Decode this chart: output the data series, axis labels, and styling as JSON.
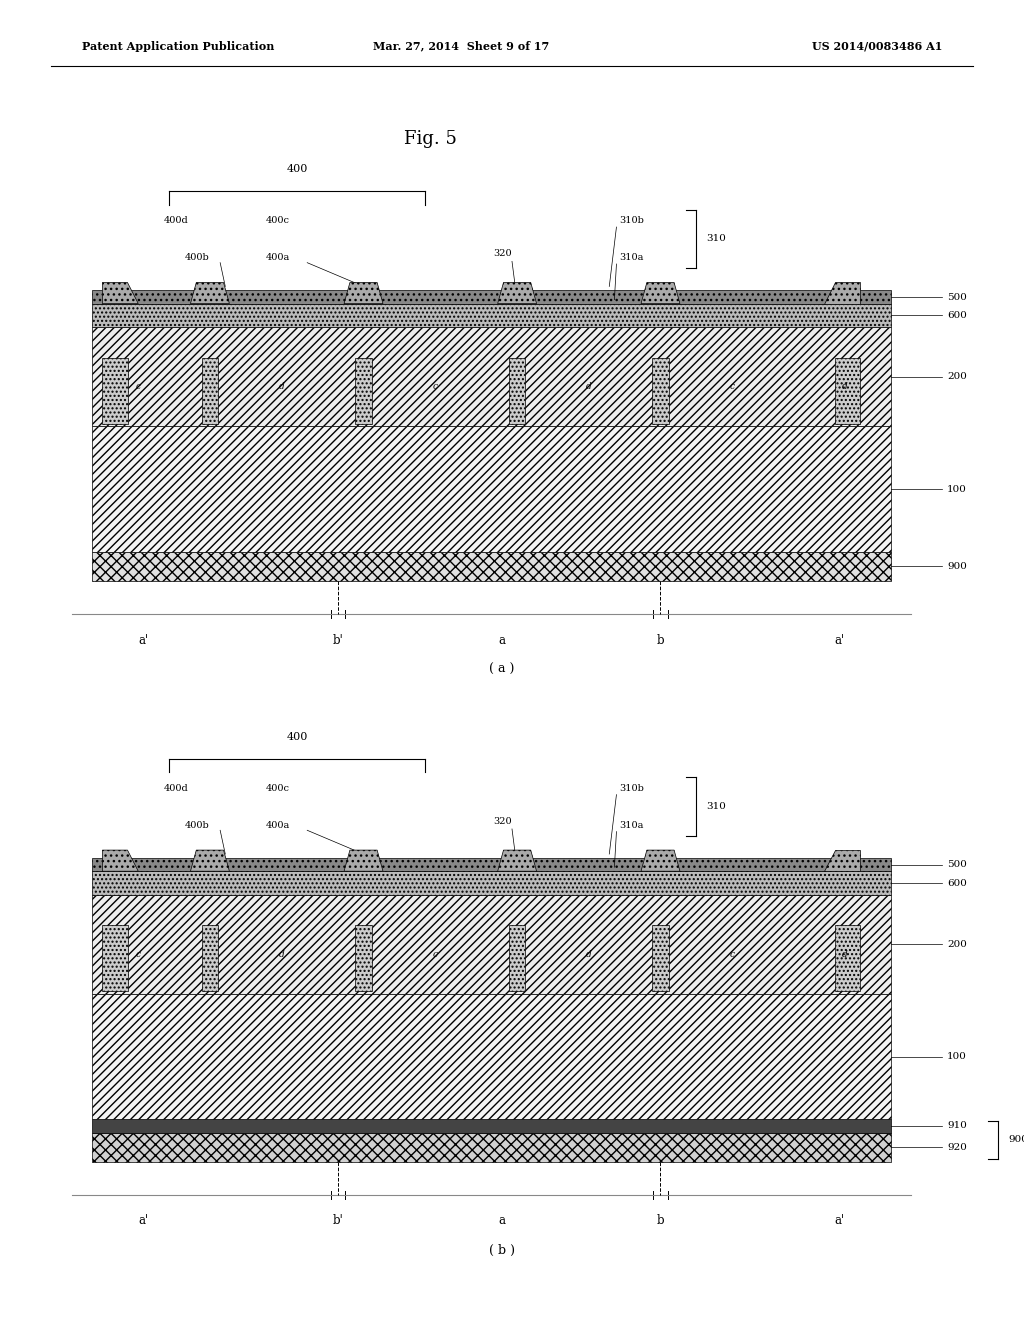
{
  "title": "Fig. 5",
  "header_left": "Patent Application Publication",
  "header_mid": "Mar. 27, 2014  Sheet 9 of 17",
  "header_right": "US 2014/0083486 A1",
  "bg_color": "#ffffff"
}
